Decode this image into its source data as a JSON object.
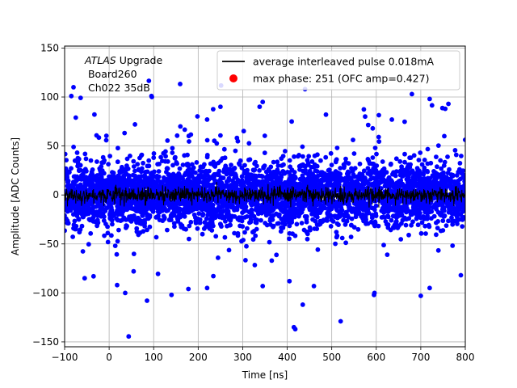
{
  "chart_data": {
    "type": "scatter",
    "xlabel": "Time [ns]",
    "ylabel": "Amplitude [ADC Counts]",
    "xlim": [
      -100,
      800
    ],
    "ylim": [
      -155,
      152
    ],
    "xticks": [
      -100,
      0,
      100,
      200,
      300,
      400,
      500,
      600,
      700,
      800
    ],
    "yticks": [
      -150,
      -100,
      -50,
      0,
      50,
      100,
      150
    ],
    "grid": true,
    "legend_position": "top-right",
    "annotation": {
      "italic_part": "ATLAS",
      "rest": " Upgrade",
      "line2": " Board260",
      "line3": " Ch022 35dB"
    },
    "series": [
      {
        "name": "average interleaved pulse 0.018mA",
        "kind": "line",
        "color": "#000000",
        "description_values": {
          "mean": 0,
          "spread": 4
        }
      },
      {
        "name": "max phase: 251 (OFC amp=0.427)",
        "kind": "marker",
        "color": "#ff0000",
        "points": []
      },
      {
        "name": "",
        "kind": "scatter",
        "color": "#0000ff",
        "core_spread": 25,
        "outliers": [
          {
            "x": 415,
            "y": -135
          },
          {
            "x": 418,
            "y": -137
          },
          {
            "x": 520,
            "y": -129
          },
          {
            "x": 435,
            "y": -112
          },
          {
            "x": 596,
            "y": -100
          },
          {
            "x": 595,
            "y": -102
          },
          {
            "x": 18,
            "y": -92
          },
          {
            "x": 36,
            "y": -100
          },
          {
            "x": 85,
            "y": -108
          },
          {
            "x": 140,
            "y": -102
          },
          {
            "x": 178,
            "y": -96
          },
          {
            "x": 220,
            "y": -95
          },
          {
            "x": 345,
            "y": -93
          },
          {
            "x": 405,
            "y": -88
          },
          {
            "x": 460,
            "y": -93
          },
          {
            "x": 700,
            "y": -103
          },
          {
            "x": 720,
            "y": -95
          },
          {
            "x": 790,
            "y": -82
          },
          {
            "x": -55,
            "y": -85
          },
          {
            "x": -35,
            "y": -83
          },
          {
            "x": 55,
            "y": -78
          },
          {
            "x": -85,
            "y": 101
          },
          {
            "x": -80,
            "y": 110
          },
          {
            "x": 95,
            "y": 101
          },
          {
            "x": 96,
            "y": 100
          },
          {
            "x": 338,
            "y": 90
          },
          {
            "x": 440,
            "y": 108
          },
          {
            "x": 345,
            "y": 95
          },
          {
            "x": 680,
            "y": 103
          },
          {
            "x": 720,
            "y": 98
          },
          {
            "x": 755,
            "y": 88
          },
          {
            "x": 762,
            "y": 93
          },
          {
            "x": 220,
            "y": 77
          },
          {
            "x": 250,
            "y": 90
          },
          {
            "x": 487,
            "y": 82
          },
          {
            "x": 575,
            "y": 80
          },
          {
            "x": 635,
            "y": 77
          },
          {
            "x": 592,
            "y": 68
          },
          {
            "x": -75,
            "y": 79
          },
          {
            "x": 58,
            "y": 72
          },
          {
            "x": 160,
            "y": 70
          },
          {
            "x": 410,
            "y": 75
          }
        ]
      }
    ]
  }
}
